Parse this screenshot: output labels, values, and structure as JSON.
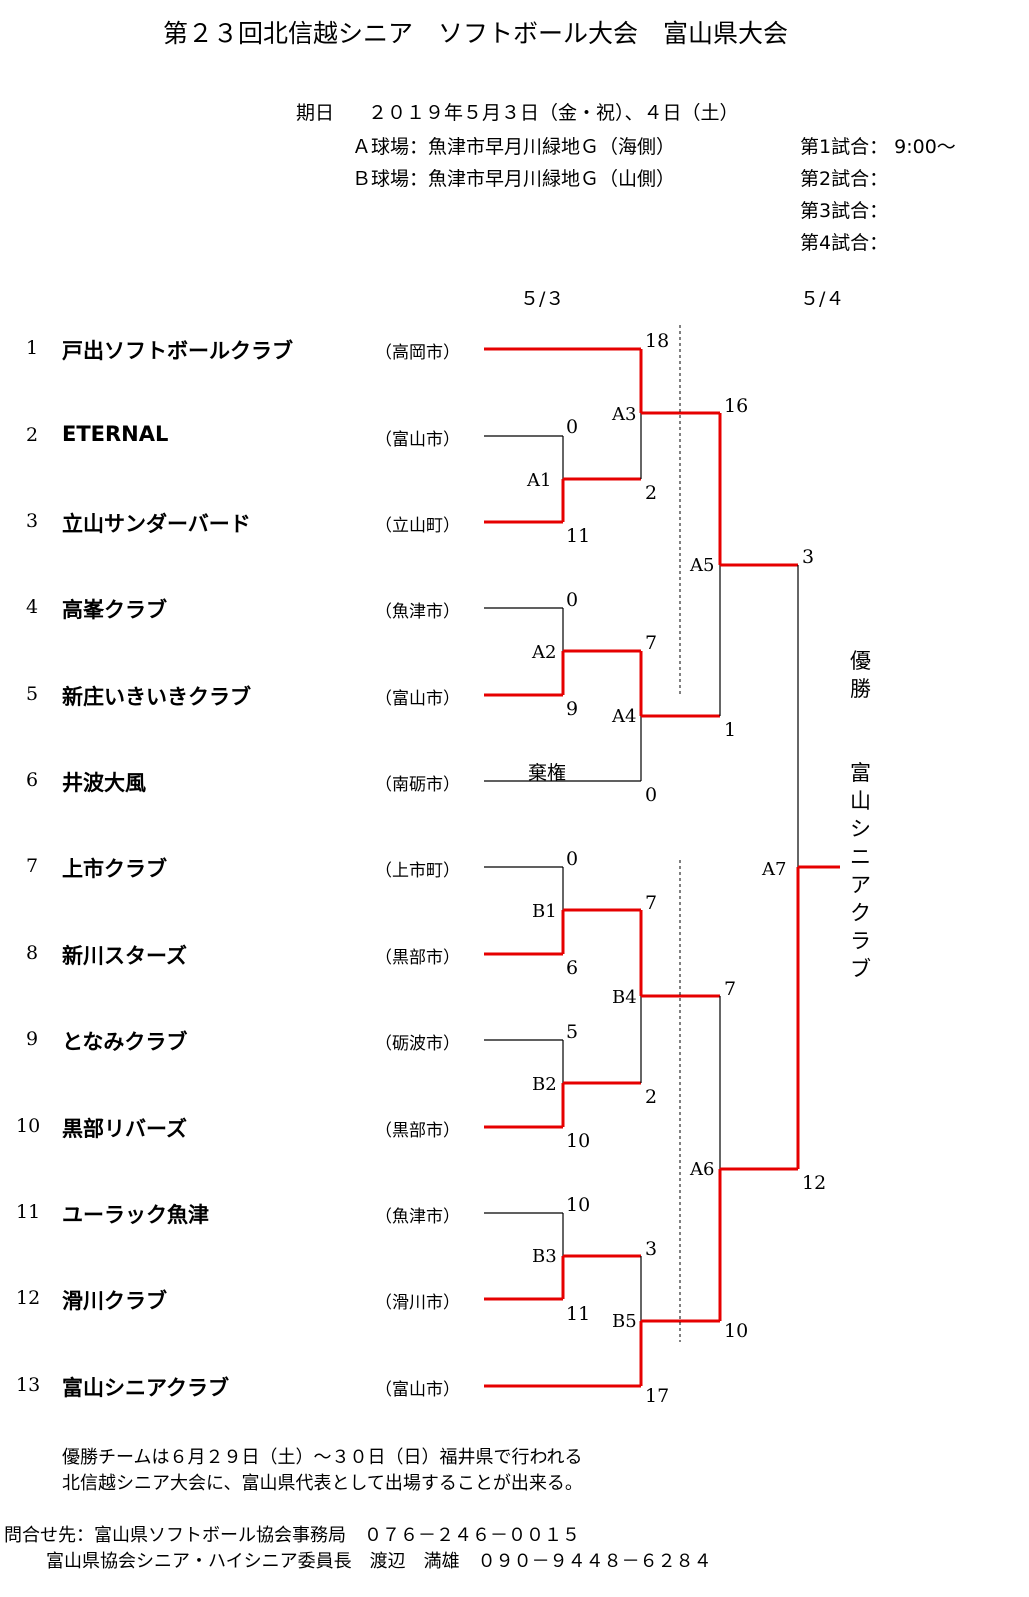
{
  "title": "第２３回北信越シニア　ソフトボール大会　富山県大会",
  "schedule": {
    "date_label": "期日",
    "date_value": "２０１９年５月３日（金・祝）、４日（土）",
    "venue_a": "Ａ球場：魚津市早月川緑地Ｇ（海側）",
    "venue_b": "Ｂ球場：魚津市早月川緑地Ｇ（山側）",
    "games": [
      "第1試合：  9:00～",
      "第2試合：",
      "第3試合：",
      "第4試合："
    ]
  },
  "days": {
    "day1": "５/３",
    "day2": "５/４"
  },
  "teams": [
    {
      "seed": "1",
      "name": "戸出ソフトボールクラブ",
      "city": "（高岡市）"
    },
    {
      "seed": "2",
      "name": "ETERNAL",
      "city": "（富山市）"
    },
    {
      "seed": "3",
      "name": "立山サンダーバード",
      "city": "（立山町）"
    },
    {
      "seed": "4",
      "name": "高峯クラブ",
      "city": "（魚津市）"
    },
    {
      "seed": "5",
      "name": "新庄いきいきクラブ",
      "city": "（富山市）"
    },
    {
      "seed": "6",
      "name": "井波大風",
      "city": "（南砺市）"
    },
    {
      "seed": "7",
      "name": "上市クラブ",
      "city": "（上市町）"
    },
    {
      "seed": "8",
      "name": "新川スターズ",
      "city": "（黒部市）"
    },
    {
      "seed": "9",
      "name": "となみクラブ",
      "city": "（砺波市）"
    },
    {
      "seed": "10",
      "name": "黒部リバーズ",
      "city": "（黒部市）"
    },
    {
      "seed": "11",
      "name": "ユーラック魚津",
      "city": "（魚津市）"
    },
    {
      "seed": "12",
      "name": "滑川クラブ",
      "city": "（滑川市）"
    },
    {
      "seed": "13",
      "name": "富山シニアクラブ",
      "city": "（富山市）"
    }
  ],
  "matches": {
    "A1": {
      "label": "A1",
      "top": "0",
      "bottom": "11"
    },
    "A2": {
      "label": "A2",
      "top": "0",
      "bottom": "9"
    },
    "A3": {
      "label": "A3",
      "top": "18",
      "bottom": "2"
    },
    "A4": {
      "label": "A4",
      "top": "7",
      "bottom": "0",
      "note": "棄権"
    },
    "A5": {
      "label": "A5",
      "top": "16",
      "bottom": "1"
    },
    "B1": {
      "label": "B1",
      "top": "0",
      "bottom": "6"
    },
    "B2": {
      "label": "B2",
      "top": "5",
      "bottom": "10"
    },
    "B3": {
      "label": "B3",
      "top": "10",
      "bottom": "11"
    },
    "B4": {
      "label": "B4",
      "top": "7",
      "bottom": "2"
    },
    "B5": {
      "label": "B5",
      "top": "3",
      "bottom": "17"
    },
    "A6": {
      "label": "A6",
      "top": "7",
      "bottom": "10"
    },
    "A7": {
      "label": "A7",
      "top": "3",
      "bottom": "12"
    }
  },
  "champion": {
    "label": "優勝",
    "name": "富山シニアクラブ"
  },
  "notes": {
    "line1": "優勝チームは６月２９日（土）～３０日（日）福井県で行われる",
    "line2": "北信越シニア大会に、富山県代表として出場することが出来る。",
    "contact1": "問合せ先：富山県ソフトボール協会事務局　０７６－２４６－００１５",
    "contact2": "富山県協会シニア・ハイシニア委員長　渡辺　満雄　０９０－９４４８－６２８４"
  },
  "colors": {
    "winner_line": "#e60000",
    "line": "#000000"
  }
}
